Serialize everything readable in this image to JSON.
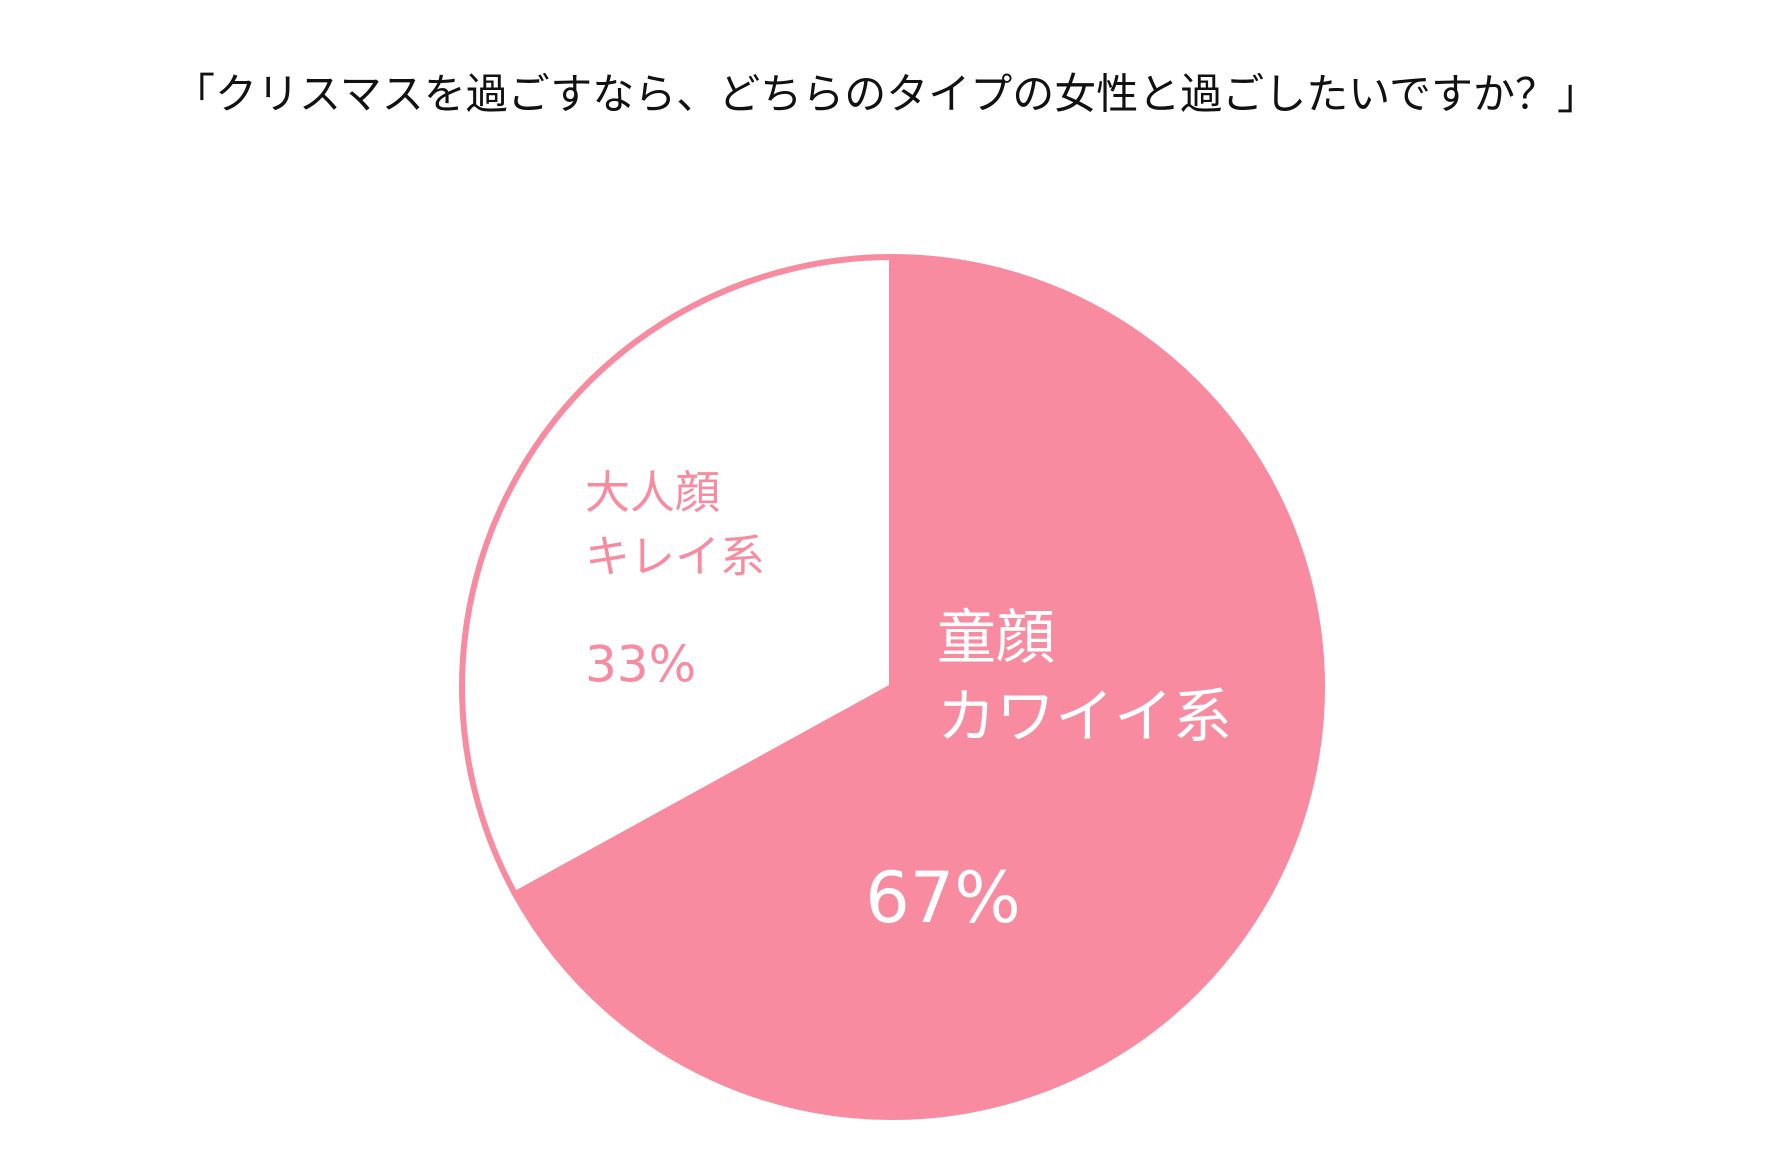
{
  "chart_data": {
    "type": "pie",
    "title": "「クリスマスを過ごすなら、どちらのタイプの女性と過ごしたいですか？」",
    "categories": [
      [
        "童顔",
        "カワイイ系"
      ],
      [
        "大人顔",
        "キレイ系"
      ]
    ],
    "values": [
      67,
      33
    ],
    "value_labels": [
      "67%",
      "33%"
    ],
    "colors": [
      "#F98BA0",
      "#FFFFFF"
    ],
    "edge_color": "#F98BA0",
    "label_colors": [
      "#FFFFFF",
      "#F98BA0"
    ]
  }
}
